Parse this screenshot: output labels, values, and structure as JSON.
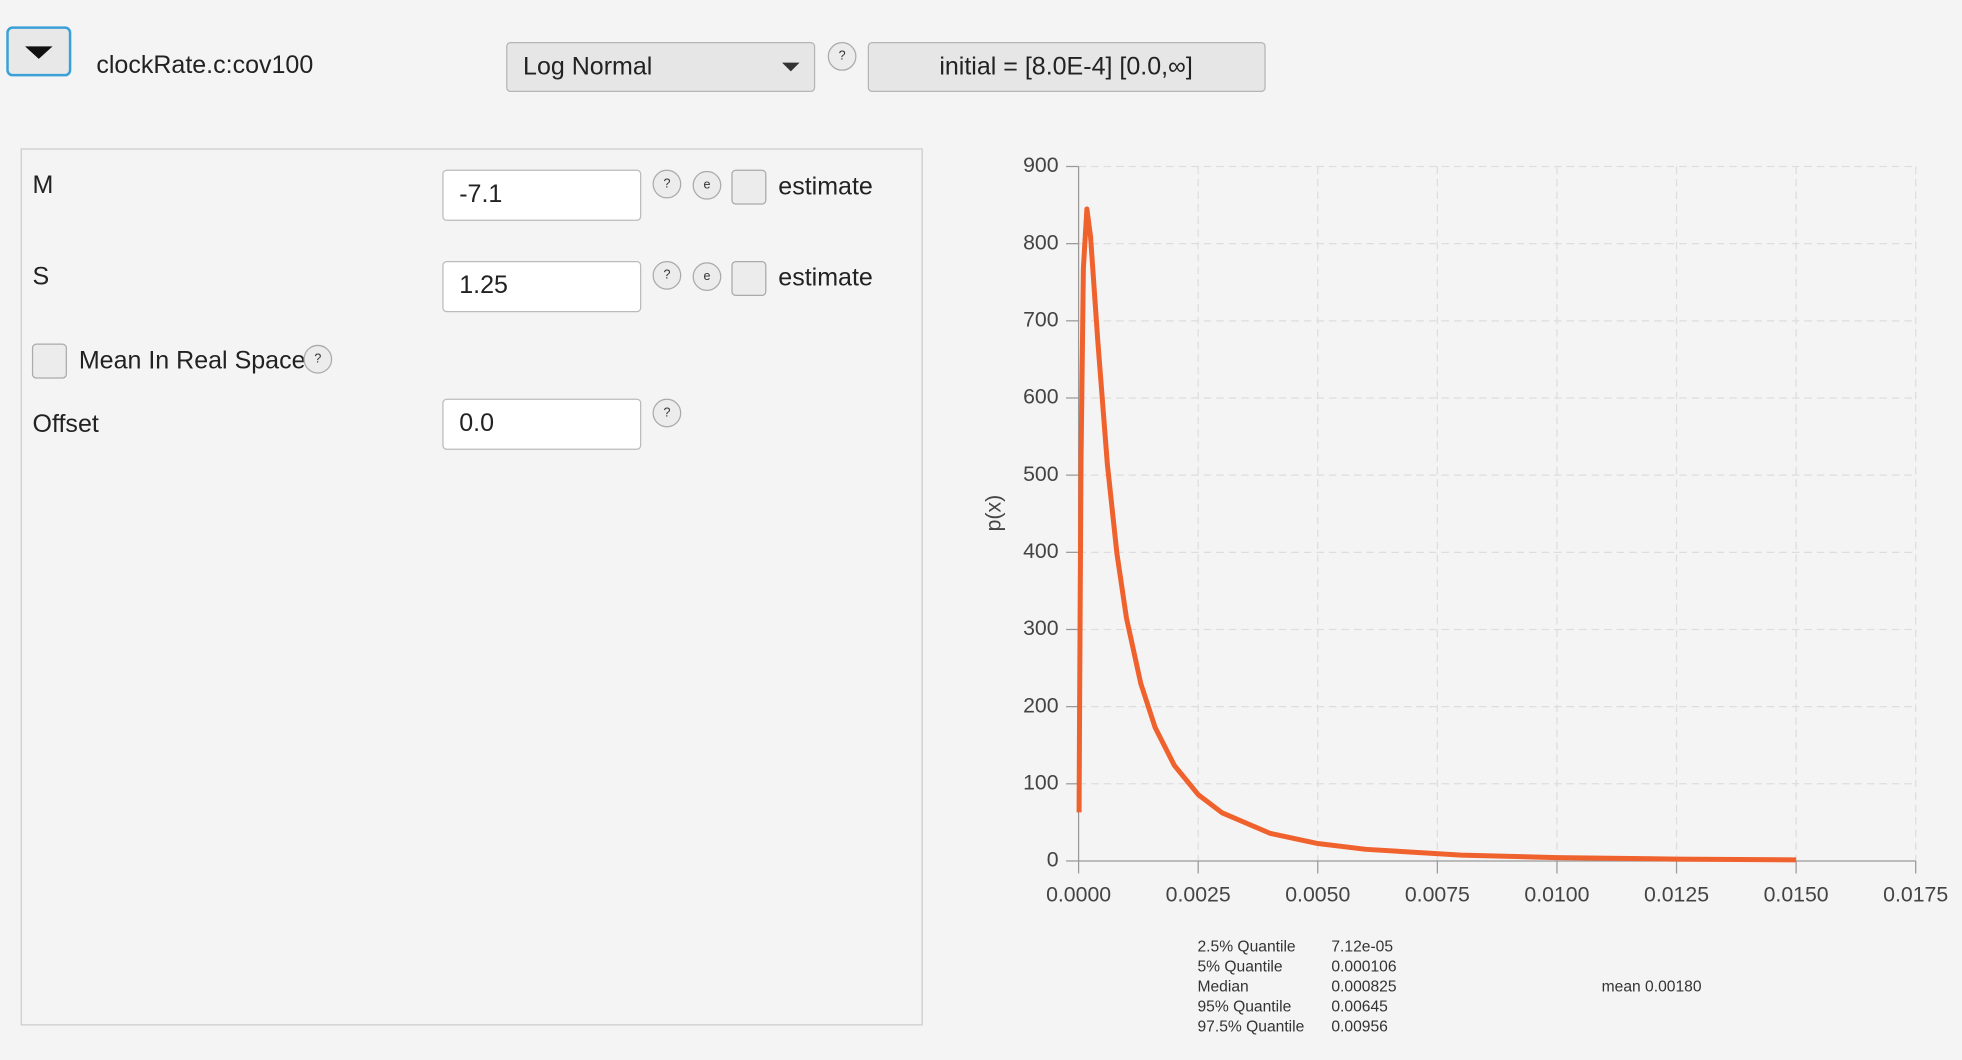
{
  "header": {
    "parameter": "clockRate.c:cov100",
    "distribution": "Log Normal",
    "initial": "initial = [8.0E-4] [0.0,∞]"
  },
  "help_icon": "?",
  "estimate_icon": "e",
  "params": [
    {
      "label": "M",
      "value": "-7.1",
      "estimate": "estimate"
    },
    {
      "label": "S",
      "value": "1.25",
      "estimate": "estimate"
    }
  ],
  "mean_in_real_space": "Mean In Real Space",
  "offset": {
    "label": "Offset",
    "value": "0.0"
  },
  "chart_data": {
    "type": "line",
    "y_label": "p(x)",
    "color": "#f0622d",
    "grid": true,
    "x": [
      1e-05,
      2e-05,
      5e-05,
      0.0001,
      0.000173,
      0.00025,
      0.0004,
      0.0006,
      0.0008,
      0.001,
      0.0013,
      0.0016,
      0.002,
      0.0025,
      0.003,
      0.004,
      0.005,
      0.006,
      0.008,
      0.01,
      0.0125,
      0.015
    ],
    "values": [
      63,
      190,
      516,
      768,
      845,
      809,
      675,
      515,
      399,
      315,
      230,
      173,
      124,
      86,
      62.4,
      35.9,
      22.6,
      15.1,
      7.6,
      4.35,
      2.4,
      1.44
    ],
    "xlim": [
      0,
      0.0175
    ],
    "ylim": [
      0,
      900
    ],
    "xticks": [
      {
        "value": 0,
        "label": "0.0000"
      },
      {
        "value": 0.0025,
        "label": "0.0025"
      },
      {
        "value": 0.005,
        "label": "0.0050"
      },
      {
        "value": 0.0075,
        "label": "0.0075"
      },
      {
        "value": 0.01,
        "label": "0.0100"
      },
      {
        "value": 0.0125,
        "label": "0.0125"
      },
      {
        "value": 0.015,
        "label": "0.0150"
      },
      {
        "value": 0.0175,
        "label": "0.0175"
      }
    ],
    "yticks": [
      0,
      100,
      200,
      300,
      400,
      500,
      600,
      700,
      800,
      900
    ]
  },
  "quantiles": [
    {
      "label": "2.5% Quantile",
      "value": "7.12e-05"
    },
    {
      "label": "5% Quantile",
      "value": "0.000106"
    },
    {
      "label": "Median",
      "value": "0.000825"
    },
    {
      "label": "95% Quantile",
      "value": "0.00645"
    },
    {
      "label": "97.5% Quantile",
      "value": "0.00956"
    }
  ],
  "mean": "mean 0.00180"
}
